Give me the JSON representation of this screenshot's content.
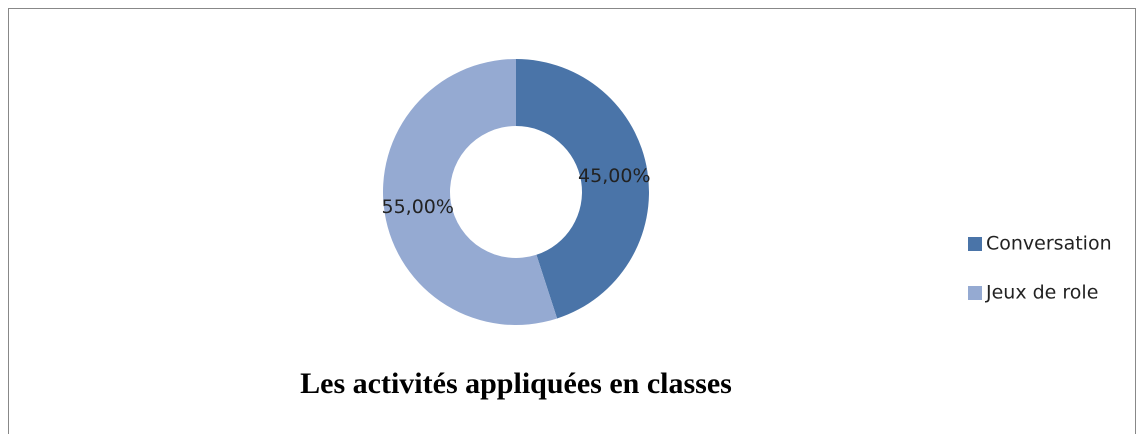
{
  "chart_data": {
    "type": "donut",
    "title": "Les activités appliquées en classes",
    "categories": [
      "Conversation",
      "Jeux de role"
    ],
    "values": [
      45,
      55
    ],
    "value_labels": [
      "45,00%",
      "55,00%"
    ],
    "colors": [
      "#4a74a8",
      "#95aad2"
    ],
    "legend": "right"
  }
}
